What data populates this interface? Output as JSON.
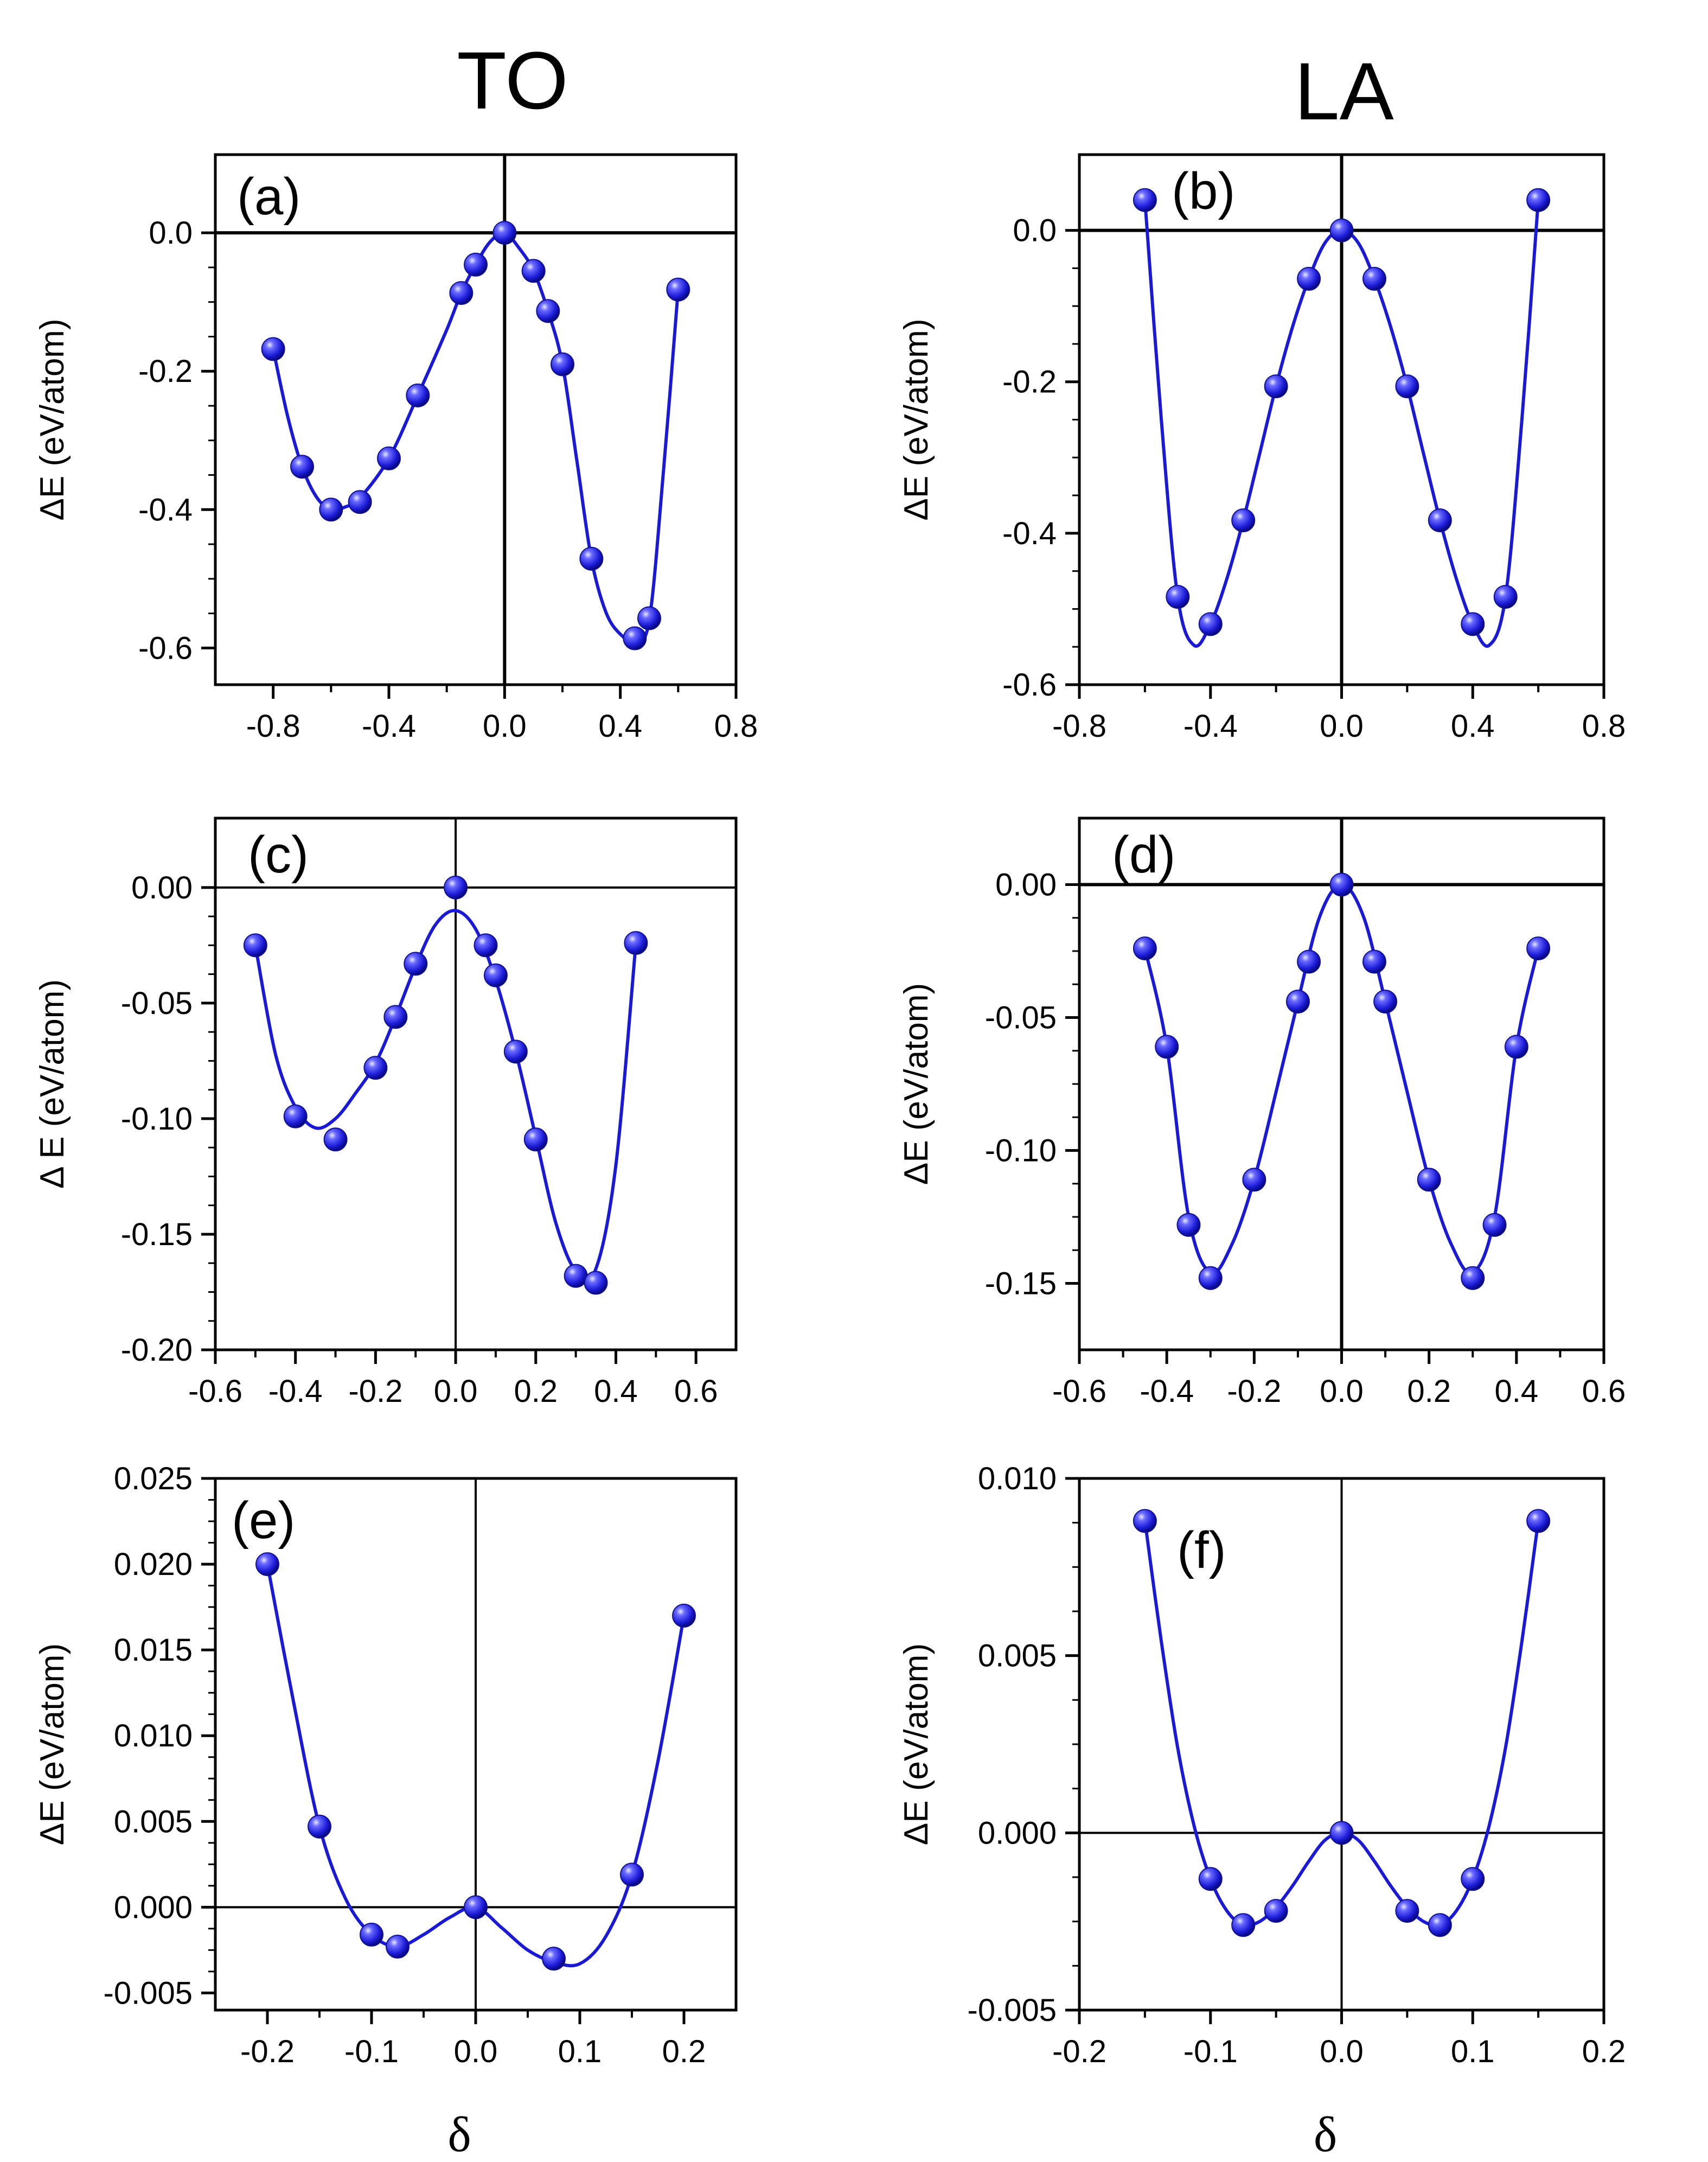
{
  "column_titles": [
    "TO",
    "LA"
  ],
  "chart_data": [
    {
      "type": "scatter",
      "panel": "(a)",
      "mode": "TO",
      "xlabel": "",
      "ylabel": "ΔE (eV/atom)",
      "xlim": [
        -1.0,
        0.8
      ],
      "ylim": [
        -0.653,
        0.113
      ],
      "xticks": [
        -0.8,
        -0.4,
        0.0,
        0.4,
        0.8
      ],
      "xtick_labels": [
        "-0.8",
        "-0.4",
        "0.0",
        "0.4",
        "0.8"
      ],
      "yticks": [
        0.0,
        -0.2,
        -0.4,
        -0.6
      ],
      "ytick_labels": [
        "0.0",
        "-0.2",
        "-0.4",
        "-0.6"
      ],
      "x": [
        -0.8,
        -0.7,
        -0.6,
        -0.5,
        -0.4,
        -0.3,
        -0.15,
        -0.1,
        0.0,
        0.1,
        0.15,
        0.2,
        0.3,
        0.45,
        0.5,
        0.6
      ],
      "y": [
        -0.168,
        -0.338,
        -0.4,
        -0.389,
        -0.326,
        -0.235,
        -0.087,
        -0.046,
        0.0,
        -0.055,
        -0.113,
        -0.19,
        -0.471,
        -0.586,
        -0.557,
        -0.082
      ],
      "fit_x": [
        -0.8,
        -0.75,
        -0.7,
        -0.65,
        -0.6,
        -0.55,
        -0.5,
        -0.4,
        -0.3,
        -0.2,
        -0.15,
        -0.1,
        -0.05,
        0.0,
        0.05,
        0.1,
        0.15,
        0.2,
        0.25,
        0.3,
        0.35,
        0.4,
        0.45,
        0.5,
        0.55,
        0.6
      ],
      "fit_y": [
        -0.168,
        -0.265,
        -0.338,
        -0.382,
        -0.4,
        -0.396,
        -0.383,
        -0.326,
        -0.235,
        -0.14,
        -0.087,
        -0.046,
        -0.013,
        0.0,
        -0.022,
        -0.055,
        -0.113,
        -0.19,
        -0.33,
        -0.471,
        -0.548,
        -0.58,
        -0.59,
        -0.56,
        -0.34,
        -0.082
      ],
      "hline": 0.0,
      "vline": 0.0
    },
    {
      "type": "scatter",
      "panel": "(b)",
      "mode": "LA",
      "xlabel": "",
      "ylabel": "ΔE (eV/atom)",
      "xlim": [
        -0.8,
        0.8
      ],
      "ylim": [
        -0.6,
        0.1
      ],
      "xticks": [
        -0.8,
        -0.4,
        0.0,
        0.4,
        0.8
      ],
      "xtick_labels": [
        "-0.8",
        "-0.4",
        "0.0",
        "0.4",
        "0.8"
      ],
      "yticks": [
        0.0,
        -0.2,
        -0.4,
        -0.6
      ],
      "ytick_labels": [
        "0.0",
        "-0.2",
        "-0.4",
        "-0.6"
      ],
      "x": [
        -0.6,
        -0.5,
        -0.4,
        -0.3,
        -0.2,
        -0.1,
        0.0,
        0.1,
        0.2,
        0.3,
        0.4,
        0.5,
        0.6
      ],
      "y": [
        0.04,
        -0.484,
        -0.52,
        -0.383,
        -0.206,
        -0.064,
        0.0,
        -0.064,
        -0.206,
        -0.383,
        -0.52,
        -0.484,
        0.04
      ],
      "fit_x": [
        -0.6,
        -0.55,
        -0.5,
        -0.45,
        -0.4,
        -0.35,
        -0.3,
        -0.25,
        -0.2,
        -0.15,
        -0.1,
        -0.05,
        0.0,
        0.05,
        0.1,
        0.15,
        0.2,
        0.25,
        0.3,
        0.35,
        0.4,
        0.45,
        0.5,
        0.55,
        0.6
      ],
      "fit_y": [
        0.04,
        -0.25,
        -0.484,
        -0.548,
        -0.52,
        -0.46,
        -0.383,
        -0.295,
        -0.206,
        -0.128,
        -0.064,
        -0.016,
        0.0,
        -0.016,
        -0.064,
        -0.128,
        -0.206,
        -0.295,
        -0.383,
        -0.46,
        -0.52,
        -0.548,
        -0.484,
        -0.25,
        0.04
      ],
      "hline": 0.0,
      "vline": 0.0
    },
    {
      "type": "scatter",
      "panel": "(c)",
      "mode": "TO",
      "xlabel": "",
      "ylabel": "Δ E (eV/atom)",
      "xlim": [
        -0.6,
        0.7
      ],
      "ylim": [
        -0.2,
        0.03
      ],
      "xticks": [
        -0.6,
        -0.4,
        -0.2,
        0.0,
        0.2,
        0.4,
        0.6
      ],
      "xtick_labels": [
        "-0.6",
        "-0.4",
        "-0.2",
        "0.0",
        "0.2",
        "0.4",
        "0.6"
      ],
      "yticks": [
        0.0,
        -0.05,
        -0.1,
        -0.15,
        -0.2
      ],
      "ytick_labels": [
        "0.00",
        "-0.05",
        "-0.10",
        "-0.15",
        "-0.20"
      ],
      "x": [
        -0.5,
        -0.4,
        -0.3,
        -0.2,
        -0.15,
        -0.1,
        0.0,
        0.075,
        0.1,
        0.15,
        0.2,
        0.3,
        0.35,
        0.45
      ],
      "y": [
        -0.025,
        -0.099,
        -0.109,
        -0.078,
        -0.056,
        -0.033,
        0.0,
        -0.025,
        -0.038,
        -0.071,
        -0.109,
        -0.168,
        -0.171,
        -0.024
      ],
      "fit_x": [
        -0.5,
        -0.45,
        -0.4,
        -0.35,
        -0.3,
        -0.25,
        -0.2,
        -0.15,
        -0.1,
        -0.05,
        0.0,
        0.05,
        0.1,
        0.15,
        0.2,
        0.25,
        0.3,
        0.35,
        0.4,
        0.45
      ],
      "fit_y": [
        -0.025,
        -0.072,
        -0.095,
        -0.104,
        -0.1,
        -0.089,
        -0.076,
        -0.056,
        -0.034,
        -0.016,
        -0.01,
        -0.018,
        -0.04,
        -0.071,
        -0.108,
        -0.145,
        -0.166,
        -0.165,
        -0.12,
        -0.024
      ],
      "hline": 0.0,
      "vline": 0.0
    },
    {
      "type": "scatter",
      "panel": "(d)",
      "mode": "LA",
      "xlabel": "",
      "ylabel": "ΔE (eV/atom)",
      "xlim": [
        -0.6,
        0.6
      ],
      "ylim": [
        -0.175,
        0.025
      ],
      "xticks": [
        -0.6,
        -0.4,
        -0.2,
        0.0,
        0.2,
        0.4,
        0.6
      ],
      "xtick_labels": [
        "-0.6",
        "-0.4",
        "-0.2",
        "0.0",
        "0.2",
        "0.4",
        "0.6"
      ],
      "yticks": [
        0.0,
        -0.05,
        -0.1,
        -0.15
      ],
      "ytick_labels": [
        "0.00",
        "-0.05",
        "-0.10",
        "-0.15"
      ],
      "x": [
        -0.45,
        -0.4,
        -0.35,
        -0.3,
        -0.2,
        -0.1,
        -0.075,
        0.0,
        0.075,
        0.1,
        0.2,
        0.3,
        0.35,
        0.4,
        0.45
      ],
      "y": [
        -0.024,
        -0.061,
        -0.128,
        -0.148,
        -0.111,
        -0.044,
        -0.029,
        0.0,
        -0.029,
        -0.044,
        -0.111,
        -0.148,
        -0.128,
        -0.061,
        -0.024
      ],
      "fit_x": [
        -0.45,
        -0.4,
        -0.35,
        -0.3,
        -0.25,
        -0.2,
        -0.15,
        -0.1,
        -0.05,
        0.0,
        0.05,
        0.1,
        0.15,
        0.2,
        0.25,
        0.3,
        0.35,
        0.4,
        0.45
      ],
      "fit_y": [
        -0.024,
        -0.061,
        -0.125,
        -0.146,
        -0.135,
        -0.111,
        -0.078,
        -0.044,
        -0.012,
        0.0,
        -0.012,
        -0.044,
        -0.078,
        -0.111,
        -0.135,
        -0.146,
        -0.125,
        -0.061,
        -0.024
      ],
      "hline": 0.0,
      "vline": 0.0
    },
    {
      "type": "scatter",
      "panel": "(e)",
      "mode": "TO",
      "xlabel": "δ",
      "ylabel": "ΔE (eV/atom)",
      "xlim": [
        -0.25,
        0.25
      ],
      "ylim": [
        -0.006,
        0.025
      ],
      "xticks": [
        -0.2,
        -0.1,
        0.0,
        0.1,
        0.2
      ],
      "xtick_labels": [
        "-0.2",
        "-0.1",
        "0.0",
        "0.1",
        "0.2"
      ],
      "yticks": [
        0.025,
        0.02,
        0.015,
        0.01,
        0.005,
        0.0,
        -0.005
      ],
      "ytick_labels": [
        "0.025",
        "0.020",
        "0.015",
        "0.010",
        "0.005",
        "0.000",
        "-0.005"
      ],
      "x": [
        -0.2,
        -0.15,
        -0.1,
        -0.075,
        0.0,
        0.075,
        0.15,
        0.2
      ],
      "y": [
        0.02,
        0.0047,
        -0.0016,
        -0.0023,
        0.0,
        -0.003,
        0.0019,
        0.017
      ],
      "fit_x": [
        -0.2,
        -0.175,
        -0.15,
        -0.125,
        -0.1,
        -0.075,
        -0.05,
        -0.025,
        0.0,
        0.025,
        0.05,
        0.075,
        0.1,
        0.125,
        0.15,
        0.175,
        0.2
      ],
      "fit_y": [
        0.02,
        0.012,
        0.0047,
        0.0005,
        -0.0016,
        -0.0023,
        -0.0016,
        -0.0006,
        0.0,
        -0.0012,
        -0.0025,
        -0.0032,
        -0.0033,
        -0.0017,
        0.0019,
        0.0085,
        0.017
      ],
      "hline": 0.0,
      "vline": 0.0
    },
    {
      "type": "scatter",
      "panel": "(f)",
      "mode": "LA",
      "xlabel": "δ",
      "ylabel": "ΔE (eV/atom)",
      "xlim": [
        -0.2,
        0.2
      ],
      "ylim": [
        -0.005,
        0.01
      ],
      "xticks": [
        -0.2,
        -0.1,
        0.0,
        0.1,
        0.2
      ],
      "xtick_labels": [
        "-0.2",
        "-0.1",
        "0.0",
        "0.1",
        "0.2"
      ],
      "yticks": [
        0.01,
        0.005,
        0.0,
        -0.005
      ],
      "ytick_labels": [
        "0.010",
        "0.005",
        "0.000",
        "-0.005"
      ],
      "x": [
        -0.15,
        -0.1,
        -0.075,
        -0.05,
        0.0,
        0.05,
        0.075,
        0.1,
        0.15
      ],
      "y": [
        0.0088,
        -0.0013,
        -0.0026,
        -0.0022,
        0.0,
        -0.0022,
        -0.0026,
        -0.0013,
        0.0088
      ],
      "fit_x": [
        -0.15,
        -0.1375,
        -0.125,
        -0.1125,
        -0.1,
        -0.0875,
        -0.075,
        -0.0625,
        -0.05,
        -0.0375,
        -0.025,
        -0.0125,
        0.0,
        0.0125,
        0.025,
        0.0375,
        0.05,
        0.0625,
        0.075,
        0.0875,
        0.1,
        0.1125,
        0.125,
        0.1375,
        0.15
      ],
      "fit_y": [
        0.0088,
        0.0054,
        0.0024,
        0.0002,
        -0.0013,
        -0.0022,
        -0.0026,
        -0.0025,
        -0.0021,
        -0.0015,
        -0.0008,
        -0.0002,
        0.0,
        -0.0002,
        -0.0008,
        -0.0015,
        -0.0021,
        -0.0025,
        -0.0026,
        -0.0022,
        -0.0013,
        0.0002,
        0.0024,
        0.0054,
        0.0088
      ],
      "hline": 0.0,
      "vline": 0.0
    }
  ],
  "colors": {
    "marker": "#2222dd",
    "marker_highlight": "#c8c8ff",
    "marker_shadow": "#000088",
    "curve": "#1a1ad6",
    "axis": "#000000"
  }
}
